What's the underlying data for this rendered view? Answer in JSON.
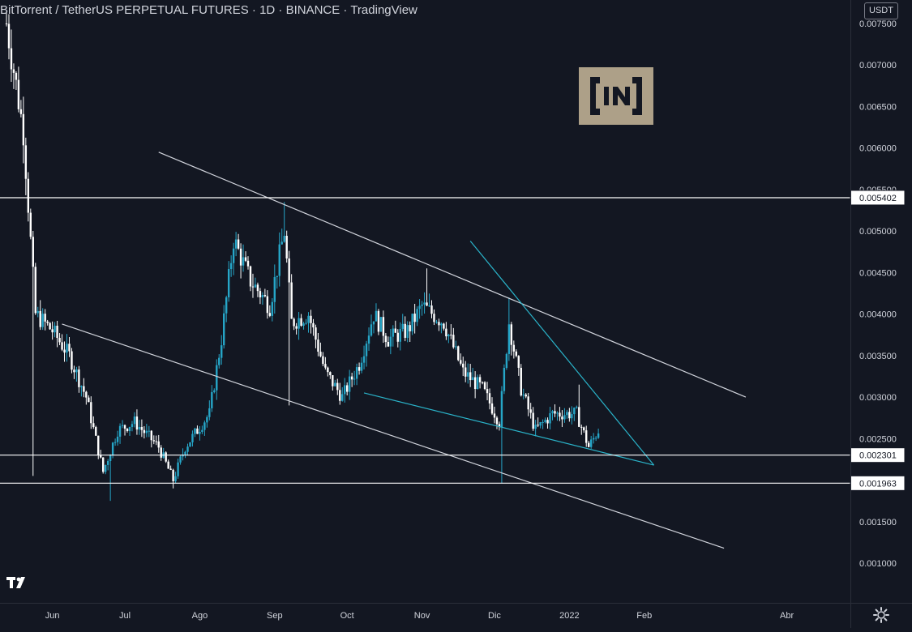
{
  "header": {
    "title": "BitTorrent / TetherUS PERPETUAL FUTURES · 1D · BINANCE · TradingView",
    "currency": "USDT"
  },
  "watermark": {
    "text": "IN",
    "color": "#c9b89a"
  },
  "colors": {
    "background": "#131722",
    "candle_up": "#26a6c8",
    "candle_down": "#ffffff",
    "trendline_white": "#d1d4dc",
    "trendline_cyan": "#2ab3c9",
    "hline": "#ffffff"
  },
  "chart_data": {
    "type": "candlestick",
    "title": "BitTorrent / TetherUS PERPETUAL FUTURES · 1D · BINANCE · TradingView",
    "x_axis": {
      "type": "date",
      "range": [
        "2021-05-13",
        "2022-04-30"
      ],
      "ticks": [
        {
          "date": "2021-06-01",
          "label": "Jun"
        },
        {
          "date": "2021-07-01",
          "label": "Jul"
        },
        {
          "date": "2021-08-01",
          "label": "Ago"
        },
        {
          "date": "2021-09-01",
          "label": "Sep"
        },
        {
          "date": "2021-10-01",
          "label": "Oct"
        },
        {
          "date": "2021-11-01",
          "label": "Nov"
        },
        {
          "date": "2021-12-01",
          "label": "Dic"
        },
        {
          "date": "2022-01-01",
          "label": "2022"
        },
        {
          "date": "2022-02-01",
          "label": "Feb"
        },
        {
          "date": "2022-04-01",
          "label": "Abr"
        }
      ]
    },
    "y_axis": {
      "range": [
        0.00055,
        0.0078
      ],
      "ticks": [
        "0.001000",
        "0.001500",
        "0.002000",
        "0.002500",
        "0.003000",
        "0.003500",
        "0.004000",
        "0.004500",
        "0.005000",
        "0.005500",
        "0.006000",
        "0.006500",
        "0.007000",
        "0.007500"
      ]
    },
    "grid": false,
    "anchors": [
      {
        "date": "2021-05-13",
        "value": 0.0075
      },
      {
        "date": "2021-05-20",
        "value": 0.0062
      },
      {
        "date": "2021-05-25",
        "value": 0.004
      },
      {
        "date": "2021-06-01",
        "value": 0.0038
      },
      {
        "date": "2021-06-08",
        "value": 0.0035
      },
      {
        "date": "2021-06-15",
        "value": 0.003
      },
      {
        "date": "2021-06-22",
        "value": 0.0021
      },
      {
        "date": "2021-06-28",
        "value": 0.0026
      },
      {
        "date": "2021-07-05",
        "value": 0.0027
      },
      {
        "date": "2021-07-15",
        "value": 0.0024
      },
      {
        "date": "2021-07-21",
        "value": 0.002
      },
      {
        "date": "2021-07-26",
        "value": 0.0024
      },
      {
        "date": "2021-08-05",
        "value": 0.0028
      },
      {
        "date": "2021-08-10",
        "value": 0.0037
      },
      {
        "date": "2021-08-15",
        "value": 0.0049
      },
      {
        "date": "2021-08-22",
        "value": 0.0044
      },
      {
        "date": "2021-08-30",
        "value": 0.0041
      },
      {
        "date": "2021-09-05",
        "value": 0.005
      },
      {
        "date": "2021-09-08",
        "value": 0.0039
      },
      {
        "date": "2021-09-15",
        "value": 0.004
      },
      {
        "date": "2021-09-22",
        "value": 0.0033
      },
      {
        "date": "2021-09-29",
        "value": 0.003
      },
      {
        "date": "2021-10-06",
        "value": 0.0034
      },
      {
        "date": "2021-10-12",
        "value": 0.004
      },
      {
        "date": "2021-10-18",
        "value": 0.0037
      },
      {
        "date": "2021-10-26",
        "value": 0.0038
      },
      {
        "date": "2021-11-01",
        "value": 0.0041
      },
      {
        "date": "2021-11-10",
        "value": 0.0039
      },
      {
        "date": "2021-11-18",
        "value": 0.0033
      },
      {
        "date": "2021-11-26",
        "value": 0.0031
      },
      {
        "date": "2021-12-03",
        "value": 0.0027
      },
      {
        "date": "2021-12-07",
        "value": 0.0039
      },
      {
        "date": "2021-12-12",
        "value": 0.0031
      },
      {
        "date": "2021-12-18",
        "value": 0.0026
      },
      {
        "date": "2021-12-25",
        "value": 0.0028
      },
      {
        "date": "2022-01-04",
        "value": 0.0028
      },
      {
        "date": "2022-01-09",
        "value": 0.0024
      },
      {
        "date": "2022-01-13",
        "value": 0.0026
      }
    ],
    "wick_spikes": [
      {
        "date": "2021-05-24",
        "low": 0.00205
      },
      {
        "date": "2021-06-25",
        "low": 0.00175
      },
      {
        "date": "2021-07-21",
        "low": 0.0019
      },
      {
        "date": "2021-09-05",
        "high": 0.00535
      },
      {
        "date": "2021-09-07",
        "low": 0.0029
      },
      {
        "date": "2021-11-03",
        "high": 0.00455
      },
      {
        "date": "2021-12-04",
        "low": 0.00196
      },
      {
        "date": "2021-12-07",
        "high": 0.0042
      },
      {
        "date": "2022-01-05",
        "high": 0.00315
      }
    ],
    "horizontal_lines": [
      {
        "value": 0.005402,
        "label": "0.005402"
      },
      {
        "value": 0.002301,
        "label": "0.002301"
      },
      {
        "value": 0.001963,
        "label": "0.001963"
      }
    ],
    "trendlines": [
      {
        "color": "white",
        "from": {
          "date": "2021-07-15",
          "value": 0.00595
        },
        "to": {
          "date": "2022-03-15",
          "value": 0.003
        }
      },
      {
        "color": "white",
        "from": {
          "date": "2021-06-05",
          "value": 0.00388
        },
        "to": {
          "date": "2022-03-06",
          "value": 0.00118
        }
      },
      {
        "color": "cyan",
        "from": {
          "date": "2021-11-21",
          "value": 0.00488
        },
        "to": {
          "date": "2022-02-05",
          "value": 0.00218
        }
      },
      {
        "color": "cyan",
        "from": {
          "date": "2021-10-08",
          "value": 0.00305
        },
        "to": {
          "date": "2022-02-05",
          "value": 0.00218
        }
      }
    ]
  }
}
